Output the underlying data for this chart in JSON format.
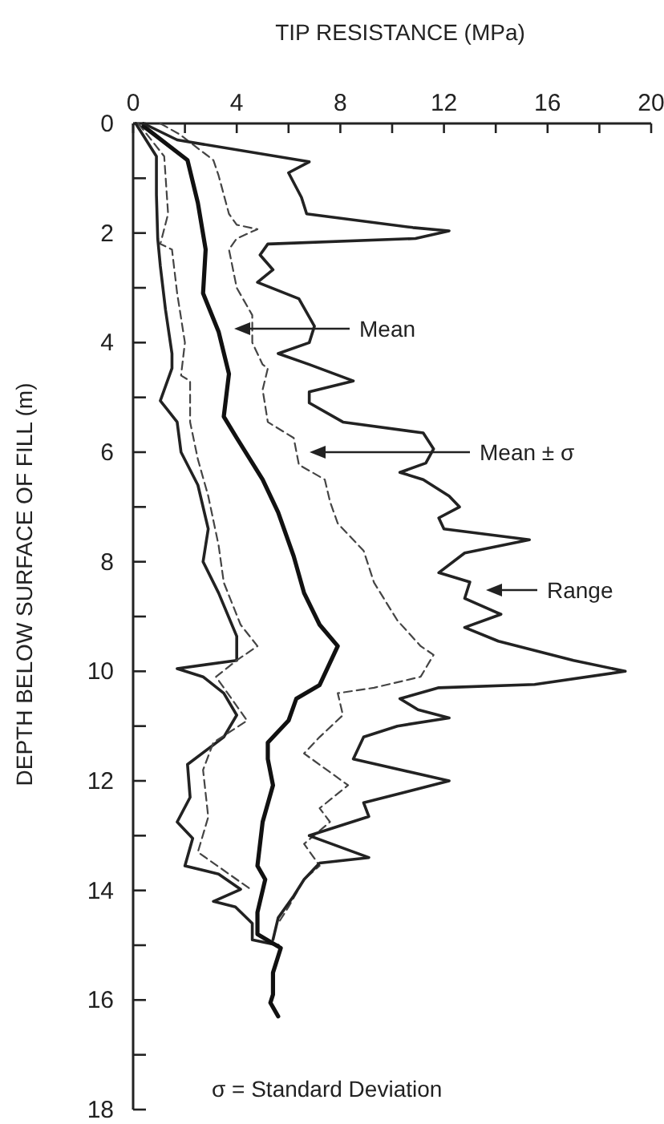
{
  "chart_data": {
    "type": "line",
    "xlabel": "TIP RESISTANCE   (MPa)",
    "ylabel": "DEPTH BELOW SURFACE OF FILL  (m)",
    "xlim": [
      0,
      20
    ],
    "xticks": [
      0,
      {
        "value": 2,
        "label": null
      },
      4,
      {
        "value": 6,
        "label": null
      },
      8,
      {
        "value": 10,
        "label": null
      },
      12,
      {
        "value": 14,
        "label": null
      },
      16,
      {
        "value": 18,
        "label": null
      },
      20
    ],
    "ylim": [
      18,
      0
    ],
    "yticks": [
      0,
      {
        "value": 1,
        "label": null
      },
      2,
      {
        "value": 3,
        "label": null
      },
      4,
      {
        "value": 5,
        "label": null
      },
      6,
      {
        "value": 7,
        "label": null
      },
      8,
      {
        "value": 9,
        "label": null
      },
      10,
      {
        "value": 11,
        "label": null
      },
      12,
      {
        "value": 13,
        "label": null
      },
      14,
      {
        "value": 15,
        "label": null
      },
      16,
      {
        "value": 17,
        "label": null
      },
      18
    ],
    "grid": false,
    "marker": "none",
    "series": [
      {
        "color": "#222222",
        "line_style": "solid",
        "x": [
          0.1,
          0.9,
          0.9,
          0.95,
          1.05,
          1.25,
          1.5,
          1.5,
          1.05,
          1.7,
          1.85,
          2.5,
          2.9,
          2.7,
          3.3,
          4.0,
          4.0,
          1.7,
          2.7,
          3.5,
          4.0,
          3.5,
          2.1,
          2.2,
          1.7,
          2.3,
          2.0,
          3.3,
          4.15,
          3.1,
          3.95,
          4.6,
          4.6,
          5.6
        ],
        "values": [
          0,
          0.6,
          1.3,
          2.1,
          2.6,
          3.4,
          4.2,
          4.47,
          5.06,
          5.45,
          6.0,
          6.6,
          7.4,
          8.0,
          8.57,
          9.36,
          9.8,
          9.95,
          10.1,
          10.4,
          10.8,
          11.2,
          11.7,
          12.3,
          12.75,
          13.05,
          13.55,
          13.7,
          13.98,
          14.2,
          14.3,
          14.6,
          14.9,
          15.0
        ]
      },
      {
        "color": "#444444",
        "line_style": "dashed",
        "x": [
          0.2,
          1.2,
          1.35,
          1.05,
          1.5,
          1.7,
          2.0,
          1.85,
          2.2,
          2.2,
          2.5,
          2.9,
          3.3,
          3.5,
          4.15,
          4.8,
          4.0,
          3.2,
          3.8,
          4.4,
          3.1,
          2.7,
          2.9,
          2.5,
          4.0,
          4.6
        ],
        "values": [
          0,
          0.6,
          1.65,
          2.2,
          2.3,
          3.1,
          4.0,
          4.6,
          4.7,
          5.45,
          6.13,
          6.8,
          7.7,
          8.38,
          9.15,
          9.54,
          9.8,
          10.1,
          10.5,
          10.9,
          11.3,
          11.8,
          12.66,
          13.3,
          13.8,
          14.0
        ]
      },
      {
        "color": "#111111",
        "line_style": "solid",
        "x": [
          0.4,
          2.1,
          2.5,
          2.8,
          2.7,
          3.3,
          3.7,
          3.5,
          4.0,
          5.0,
          5.6,
          6.2,
          6.6,
          7.2,
          7.9,
          7.2,
          6.3,
          6.0,
          5.2,
          5.2,
          5.4,
          5.0,
          4.8,
          5.1,
          4.8,
          4.8,
          5.7,
          5.4,
          5.4,
          5.3,
          5.6
        ],
        "values": [
          0.05,
          0.67,
          1.45,
          2.3,
          3.1,
          3.8,
          4.57,
          5.35,
          5.74,
          6.5,
          7.1,
          7.9,
          8.57,
          9.15,
          9.54,
          10.25,
          10.5,
          10.9,
          11.3,
          11.6,
          12.08,
          12.75,
          13.55,
          13.8,
          14.4,
          14.8,
          15.05,
          15.5,
          15.9,
          16.05,
          16.3
        ]
      },
      {
        "color": "#444444",
        "line_style": "dashed",
        "x": [
          1.05,
          1.8,
          3.1,
          3.3,
          3.7,
          4.0,
          4.8,
          4.0,
          3.7,
          4.0,
          4.6,
          4.6,
          5.0,
          5.2,
          5.0,
          5.2,
          6.2,
          6.4,
          7.4,
          7.6,
          7.9,
          8.9,
          9.3,
          10.2,
          11.1,
          11.6,
          11.1,
          9.3,
          7.9,
          8.1,
          7.2,
          6.6,
          8.3,
          7.2,
          7.6,
          6.6,
          7.2,
          6.6,
          6.0,
          5.6
        ],
        "values": [
          0,
          0.2,
          0.67,
          0.95,
          1.65,
          1.85,
          1.93,
          2.1,
          2.3,
          3.0,
          3.5,
          4.0,
          4.4,
          4.47,
          4.86,
          5.45,
          5.74,
          6.23,
          6.5,
          6.9,
          7.3,
          7.8,
          8.38,
          9.07,
          9.54,
          9.7,
          10.1,
          10.3,
          10.4,
          10.8,
          11.2,
          11.5,
          12.08,
          12.5,
          12.75,
          13.15,
          13.55,
          13.8,
          14.3,
          14.6
        ]
      },
      {
        "color": "#222222",
        "line_style": "solid",
        "x": [
          0.4,
          1.7,
          6.8,
          6.0,
          6.5,
          6.7,
          10.8,
          12.2,
          10.9,
          5.2,
          4.9,
          5.4,
          4.8,
          6.4,
          7.0,
          6.8,
          5.6,
          6.8,
          8.5,
          6.8,
          6.8,
          8.1,
          11.2,
          11.6,
          11.3,
          10.3,
          11.2,
          12.2,
          12.6,
          11.8,
          12.0,
          15.3,
          12.8,
          11.8,
          13.0,
          12.8,
          14.2,
          12.8,
          14.1,
          17.0,
          19.0,
          15.5,
          11.8,
          10.3,
          11.0,
          12.2,
          10.2,
          8.9,
          8.5,
          12.2,
          8.9,
          9.1,
          6.8,
          9.1,
          7.2,
          6.6,
          6.2,
          5.6,
          5.4
        ],
        "values": [
          0,
          0.3,
          0.7,
          0.9,
          1.35,
          1.65,
          1.9,
          1.96,
          2.1,
          2.2,
          2.4,
          2.67,
          2.9,
          3.2,
          3.7,
          4.0,
          4.2,
          4.4,
          4.7,
          4.9,
          5.1,
          5.45,
          5.65,
          5.94,
          6.2,
          6.37,
          6.5,
          6.8,
          7.0,
          7.2,
          7.4,
          7.6,
          7.84,
          8.2,
          8.37,
          8.67,
          8.96,
          9.2,
          9.45,
          9.8,
          10.0,
          10.24,
          10.3,
          10.5,
          10.7,
          10.85,
          11.0,
          11.2,
          11.6,
          12.0,
          12.4,
          12.65,
          13.0,
          13.4,
          13.5,
          13.8,
          14.1,
          14.5,
          14.9
        ]
      }
    ],
    "annotations": [
      "Mean",
      "Mean ± σ",
      "Range",
      "σ = Standard Deviation"
    ]
  }
}
